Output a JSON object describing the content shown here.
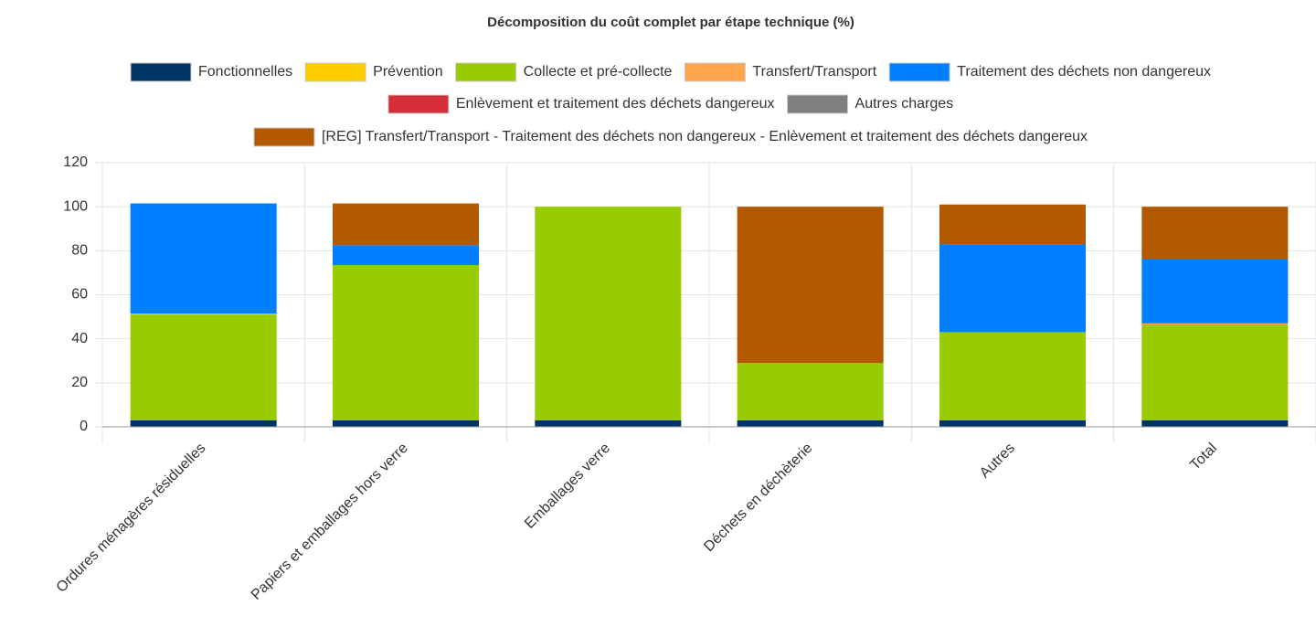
{
  "chart_data": {
    "type": "stacked_bar",
    "title": "Décomposition du coût complet par étape technique (%)",
    "categories": [
      "Ordures ménagères résiduelles",
      "Papiers et emballages hors verre",
      "Emballages verre",
      "Déchets en déchèterie",
      "Autres",
      "Total"
    ],
    "series": [
      {
        "name": "Fonctionnelles",
        "color": "#003366",
        "values": [
          3,
          3,
          3,
          3,
          3,
          3
        ]
      },
      {
        "name": "Prévention",
        "color": "#ffcc00",
        "values": [
          0,
          0,
          0,
          0,
          0,
          0
        ]
      },
      {
        "name": "Collecte et pré-collecte",
        "color": "#99cc00",
        "values": [
          48,
          70.5,
          97,
          26,
          40,
          43.5
        ]
      },
      {
        "name": "Transfert/Transport",
        "color": "#ffa64d",
        "values": [
          0.5,
          0,
          0,
          0,
          0,
          0.5
        ]
      },
      {
        "name": "Traitement des déchets non dangereux",
        "color": "#0080ff",
        "values": [
          50,
          9,
          0,
          0,
          40,
          29
        ]
      },
      {
        "name": "Enlèvement et traitement des déchets dangereux",
        "color": "#d62d3b",
        "values": [
          0,
          0,
          0,
          0,
          0,
          0
        ]
      },
      {
        "name": "Autres charges",
        "color": "#808080",
        "values": [
          0,
          0,
          0,
          0,
          0,
          0
        ]
      },
      {
        "name": "[REG] Transfert/Transport - Traitement des déchets non dangereux - Enlèvement et traitement des déchets dangereux",
        "color": "#b35900",
        "values": [
          0,
          19,
          0,
          71,
          18,
          24
        ]
      }
    ],
    "ylim": [
      0,
      120
    ],
    "yticks": [
      0,
      20,
      40,
      60,
      80,
      100,
      120
    ],
    "grid": true,
    "legend": "top"
  }
}
